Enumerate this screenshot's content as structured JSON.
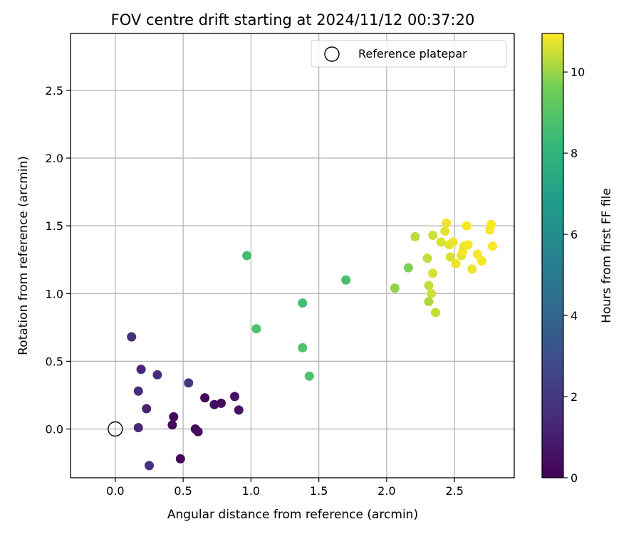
{
  "chart_data": {
    "type": "scatter",
    "title": "FOV centre drift starting at 2024/11/12 00:37:20",
    "xlabel": "Angular distance from reference (arcmin)",
    "ylabel": "Rotation from reference (arcmin)",
    "xlim": [
      -0.33,
      2.94
    ],
    "ylim": [
      -0.36,
      2.92
    ],
    "xticks": [
      0.0,
      0.5,
      1.0,
      1.5,
      2.0,
      2.5
    ],
    "xtick_labels": [
      "0.0",
      "0.5",
      "1.0",
      "1.5",
      "2.0",
      "2.5"
    ],
    "yticks": [
      0.0,
      0.5,
      1.0,
      1.5,
      2.0,
      2.5
    ],
    "ytick_labels": [
      "0.0",
      "0.5",
      "1.0",
      "1.5",
      "2.0",
      "2.5"
    ],
    "grid": true,
    "legend": {
      "placement": "upper-right",
      "entries": [
        "Reference platepar"
      ]
    },
    "reference": {
      "x": 0.0,
      "y": 0.0
    },
    "colorbar": {
      "label": "Hours from first FF file",
      "colormap": "viridis",
      "range": [
        0,
        10.95
      ],
      "ticks": [
        0,
        2,
        4,
        6,
        8,
        10
      ],
      "tick_labels": [
        "0",
        "2",
        "4",
        "6",
        "8",
        "10"
      ]
    },
    "points": [
      {
        "x": 0.43,
        "y": 0.09,
        "h": 0.2
      },
      {
        "x": 0.42,
        "y": 0.03,
        "h": 0.3
      },
      {
        "x": 0.48,
        "y": -0.22,
        "h": 0.1
      },
      {
        "x": 0.59,
        "y": 0.0,
        "h": 0.3
      },
      {
        "x": 0.61,
        "y": -0.02,
        "h": 0.4
      },
      {
        "x": 0.66,
        "y": 0.23,
        "h": 0.2
      },
      {
        "x": 0.73,
        "y": 0.18,
        "h": 0.5
      },
      {
        "x": 0.78,
        "y": 0.19,
        "h": 0.4
      },
      {
        "x": 0.88,
        "y": 0.24,
        "h": 0.6
      },
      {
        "x": 0.91,
        "y": 0.14,
        "h": 0.7
      },
      {
        "x": 0.12,
        "y": 0.68,
        "h": 1.7
      },
      {
        "x": 0.19,
        "y": 0.44,
        "h": 1.3
      },
      {
        "x": 0.31,
        "y": 0.4,
        "h": 1.5
      },
      {
        "x": 0.17,
        "y": 0.28,
        "h": 1.6
      },
      {
        "x": 0.23,
        "y": 0.15,
        "h": 1.2
      },
      {
        "x": 0.17,
        "y": 0.01,
        "h": 1.4
      },
      {
        "x": 0.25,
        "y": -0.27,
        "h": 1.8
      },
      {
        "x": 0.54,
        "y": 0.34,
        "h": 2.0
      },
      {
        "x": 0.97,
        "y": 1.28,
        "h": 8.6
      },
      {
        "x": 1.04,
        "y": 0.74,
        "h": 8.8
      },
      {
        "x": 1.38,
        "y": 0.93,
        "h": 8.5
      },
      {
        "x": 1.38,
        "y": 0.6,
        "h": 8.9
      },
      {
        "x": 1.43,
        "y": 0.39,
        "h": 8.8
      },
      {
        "x": 1.7,
        "y": 1.1,
        "h": 8.6
      },
      {
        "x": 2.06,
        "y": 1.04,
        "h": 9.9
      },
      {
        "x": 2.16,
        "y": 1.19,
        "h": 9.7
      },
      {
        "x": 2.21,
        "y": 1.42,
        "h": 10.3
      },
      {
        "x": 2.3,
        "y": 1.26,
        "h": 10.4
      },
      {
        "x": 2.31,
        "y": 1.06,
        "h": 10.4
      },
      {
        "x": 2.31,
        "y": 0.94,
        "h": 10.2
      },
      {
        "x": 2.33,
        "y": 1.0,
        "h": 10.5
      },
      {
        "x": 2.34,
        "y": 1.15,
        "h": 10.6
      },
      {
        "x": 2.34,
        "y": 1.43,
        "h": 10.5
      },
      {
        "x": 2.36,
        "y": 0.86,
        "h": 10.4
      },
      {
        "x": 2.4,
        "y": 1.38,
        "h": 10.6
      },
      {
        "x": 2.43,
        "y": 1.46,
        "h": 10.7
      },
      {
        "x": 2.44,
        "y": 1.52,
        "h": 10.8
      },
      {
        "x": 2.46,
        "y": 1.36,
        "h": 10.7
      },
      {
        "x": 2.47,
        "y": 1.27,
        "h": 10.6
      },
      {
        "x": 2.49,
        "y": 1.38,
        "h": 10.8
      },
      {
        "x": 2.51,
        "y": 1.22,
        "h": 10.8
      },
      {
        "x": 2.55,
        "y": 1.28,
        "h": 10.7
      },
      {
        "x": 2.56,
        "y": 1.31,
        "h": 10.9
      },
      {
        "x": 2.57,
        "y": 1.35,
        "h": 10.8
      },
      {
        "x": 2.59,
        "y": 1.5,
        "h": 10.9
      },
      {
        "x": 2.6,
        "y": 1.36,
        "h": 10.9
      },
      {
        "x": 2.63,
        "y": 1.18,
        "h": 10.8
      },
      {
        "x": 2.67,
        "y": 1.29,
        "h": 10.9
      },
      {
        "x": 2.7,
        "y": 1.24,
        "h": 10.9
      },
      {
        "x": 2.76,
        "y": 1.47,
        "h": 10.9
      },
      {
        "x": 2.77,
        "y": 1.51,
        "h": 10.9
      },
      {
        "x": 2.78,
        "y": 1.35,
        "h": 10.9
      }
    ]
  }
}
